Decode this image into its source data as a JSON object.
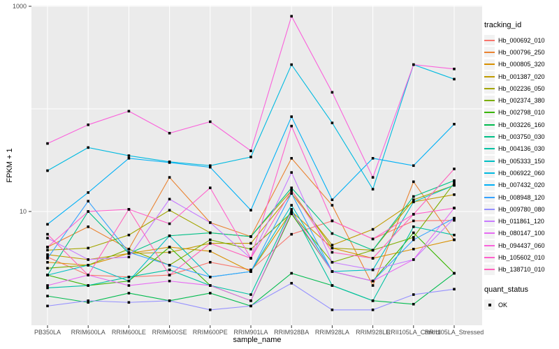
{
  "chart_data": {
    "type": "line",
    "xlabel": "sample_name",
    "ylabel": "FPKM + 1",
    "y_scale": "log10",
    "y_tick_labels": [
      "1000",
      "10"
    ],
    "y_tick_values": [
      1000,
      10
    ],
    "y_gridline_values": [
      10,
      100,
      1000
    ],
    "ylim": [
      0.8,
      1050
    ],
    "panel_bg": "#EBEBEB",
    "gridline_color": "#FFFFFF",
    "tick_color": "#333333",
    "tick_label_color": "#4D4D4D",
    "point_color": "#000000",
    "point_shape": "square",
    "legend_key_bg": "#F2F2F2",
    "categories": [
      "PB350LA",
      "RRIM600LA",
      "RRIM600LE",
      "RRIM600SE",
      "RRIM600PE",
      "RRIM901LA",
      "RRIM928BA",
      "RRIM928LA",
      "RRIM928LE",
      "RRII105LA_Control",
      "RRII105LA_Stressed"
    ],
    "legend": {
      "title": "tracking_id",
      "position": "right"
    },
    "legend2": {
      "title": "quant_status",
      "items": [
        {
          "label": "OK",
          "marker": "black-square"
        }
      ]
    },
    "series": [
      {
        "name": "Hb_000692_010",
        "color": "#F8766D",
        "values": [
          3.6,
          2.4,
          2.3,
          2.4,
          3.2,
          2.7,
          6.0,
          8.1,
          5.4,
          8.1,
          8.2
        ]
      },
      {
        "name": "Hb_000796_250",
        "color": "#EA8331",
        "values": [
          4.5,
          7.1,
          4.3,
          21.5,
          7.8,
          5.7,
          33,
          11.5,
          1.9,
          19.5,
          5.3
        ]
      },
      {
        "name": "Hb_000805_320",
        "color": "#D89000",
        "values": [
          3.2,
          3.0,
          3.9,
          4.5,
          4.1,
          2.6,
          10.0,
          4.4,
          3.5,
          4.3,
          5.3
        ]
      },
      {
        "name": "Hb_001387_020",
        "color": "#C09B00",
        "values": [
          3.8,
          3.4,
          3.9,
          4.0,
          4.9,
          4.9,
          15.0,
          4.7,
          6.7,
          12.4,
          14.6
        ]
      },
      {
        "name": "Hb_002236_050",
        "color": "#A3A500",
        "values": [
          4.2,
          4.4,
          5.9,
          10.3,
          6.2,
          5.7,
          16.0,
          4.4,
          4.2,
          13.0,
          18.0
        ]
      },
      {
        "name": "Hb_002374_380",
        "color": "#7CAE00",
        "values": [
          2.8,
          3.0,
          4.3,
          3.0,
          5.3,
          4.3,
          9.7,
          3.2,
          4.2,
          5.6,
          19.0
        ]
      },
      {
        "name": "Hb_002798_010",
        "color": "#39B600",
        "values": [
          2.4,
          1.9,
          2.1,
          4.5,
          1.9,
          1.35,
          9.5,
          2.6,
          2.1,
          6.2,
          2.5
        ]
      },
      {
        "name": "Hb_003226_160",
        "color": "#00BB4E",
        "values": [
          1.5,
          1.3,
          1.6,
          1.35,
          1.6,
          1.2,
          2.5,
          1.9,
          1.35,
          1.25,
          2.5
        ]
      },
      {
        "name": "Hb_003750_030",
        "color": "#00C087",
        "values": [
          2.4,
          10.0,
          3.9,
          5.8,
          6.2,
          5.7,
          17.0,
          6.1,
          4.2,
          14.0,
          20.0
        ]
      },
      {
        "name": "Hb_004136_030",
        "color": "#00C1A3",
        "values": [
          1.8,
          1.9,
          2.3,
          2.7,
          1.9,
          1.55,
          10.5,
          1.9,
          1.35,
          7.1,
          5.9
        ]
      },
      {
        "name": "Hb_005333_150",
        "color": "#00BFC4",
        "values": [
          2.4,
          3.0,
          2.1,
          5.8,
          2.3,
          2.6,
          11.5,
          2.6,
          2.7,
          12.4,
          18.0
        ]
      },
      {
        "name": "Hb_006922_060",
        "color": "#00BAE0",
        "values": [
          25,
          42,
          35,
          30.5,
          28,
          34,
          270,
          73,
          16.5,
          270,
          195
        ]
      },
      {
        "name": "Hb_007432_020",
        "color": "#00B0F6",
        "values": [
          7.5,
          15.3,
          33,
          30,
          27,
          10.3,
          84,
          13,
          33,
          28,
          71
        ]
      },
      {
        "name": "Hb_008948_120",
        "color": "#35A2FF",
        "values": [
          3.5,
          12.6,
          4.0,
          3.0,
          2.3,
          2.6,
          15.0,
          2.6,
          2.1,
          5.3,
          8.6
        ]
      },
      {
        "name": "Hb_009780_080",
        "color": "#9590FF",
        "values": [
          1.2,
          1.35,
          1.3,
          1.35,
          1.1,
          1.2,
          2.0,
          1.1,
          1.1,
          1.55,
          1.75
        ]
      },
      {
        "name": "Hb_011861_120",
        "color": "#C77CFF",
        "values": [
          5.5,
          3.4,
          3.6,
          13.2,
          7.8,
          3.5,
          24.0,
          3.2,
          2.7,
          3.4,
          8.6
        ]
      },
      {
        "name": "Hb_080147_100",
        "color": "#E76BF3",
        "values": [
          1.9,
          2.4,
          1.9,
          2.1,
          1.9,
          1.35,
          9.9,
          2.6,
          2.1,
          3.4,
          10.8
        ]
      },
      {
        "name": "Hb_094437_060",
        "color": "#FA62DB",
        "values": [
          46,
          70,
          95,
          58,
          75,
          39,
          800,
          145,
          21.5,
          270,
          245
        ]
      },
      {
        "name": "Hb_105602_010",
        "color": "#FF61CC",
        "values": [
          4.5,
          10.0,
          10.5,
          7.6,
          17.0,
          3.5,
          68.0,
          8.1,
          5.4,
          9.4,
          10.8
        ]
      },
      {
        "name": "Hb_138710_010",
        "color": "#FF62BC",
        "values": [
          6.0,
          2.4,
          10.5,
          2.4,
          4.9,
          3.5,
          16.0,
          4.0,
          3.5,
          9.4,
          26.0
        ]
      }
    ]
  }
}
